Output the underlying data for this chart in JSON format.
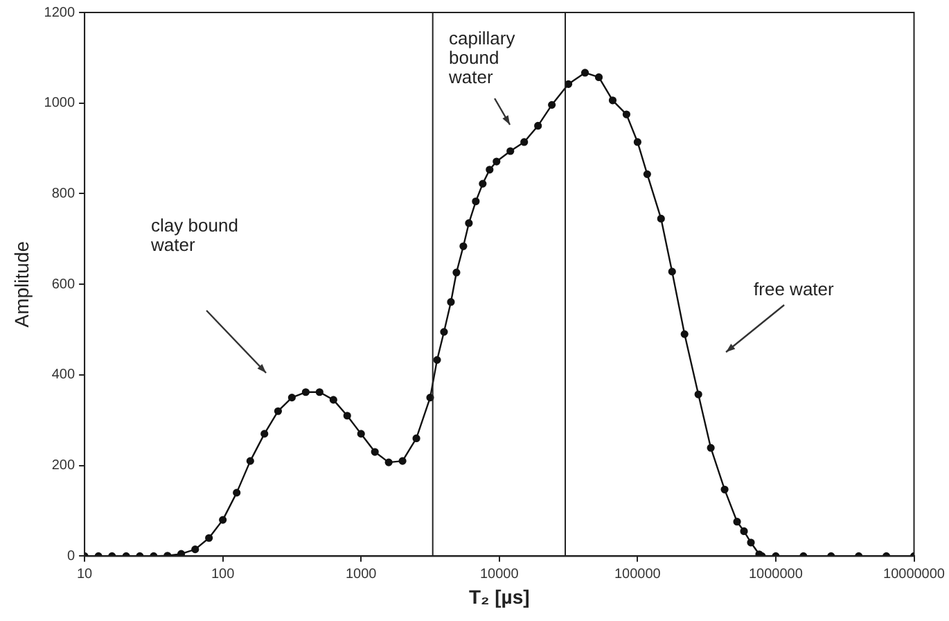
{
  "chart_data": {
    "type": "line",
    "xlabel": "T₂ [µs]",
    "ylabel": "Amplitude",
    "log": "x",
    "xlim": [
      10,
      10000000
    ],
    "xticks": [
      10,
      100,
      1000,
      10000,
      100000,
      1000000,
      10000000
    ],
    "ylim": [
      0,
      1200
    ],
    "yticks": [
      0,
      200,
      400,
      600,
      800,
      1000,
      1200
    ],
    "grid": false,
    "legend": false,
    "marker": "circle",
    "line_style": "solid",
    "series": [
      {
        "color": "#111111",
        "x": [
          10,
          12.6,
          15.8,
          20,
          25.1,
          31.6,
          39.8,
          50,
          63.1,
          79.4,
          100,
          126,
          158,
          200,
          251,
          316,
          398,
          501,
          631,
          794,
          1000,
          1259,
          1585,
          1995,
          2512,
          3162,
          3548,
          3981,
          4467,
          4898,
          5495,
          6026,
          6761,
          7586,
          8511,
          9550,
          12023,
          15136,
          19055,
          23988,
          31623,
          41687,
          52481,
          66069,
          83176,
          100000,
          117490,
          147911,
          177828,
          218776,
          275423,
          338844,
          426580,
          524807,
          588844,
          660693,
          758578,
          794328,
          1000000,
          1585000,
          2512000,
          3981000,
          6310000,
          10000000
        ],
        "values": [
          0,
          0,
          0,
          0,
          0,
          0,
          1,
          5,
          15,
          40,
          80,
          140,
          210,
          270,
          320,
          350,
          362,
          362,
          345,
          310,
          270,
          230,
          207,
          210,
          260,
          350,
          433,
          495,
          561,
          626,
          684,
          735,
          783,
          822,
          853,
          871,
          894,
          914,
          950,
          996,
          1042,
          1067,
          1057,
          1006,
          975,
          914,
          843,
          745,
          628,
          490,
          357,
          239,
          147,
          76,
          55,
          30,
          4,
          0,
          0,
          0,
          0,
          0,
          0,
          0
        ]
      }
    ],
    "ref_lines": [
      {
        "axis": "x",
        "value": 3300,
        "color": "#222222"
      },
      {
        "axis": "x",
        "value": 30000,
        "color": "#222222"
      }
    ],
    "annotations": [
      "clay bound water",
      "capillary bound water",
      "free water"
    ]
  }
}
